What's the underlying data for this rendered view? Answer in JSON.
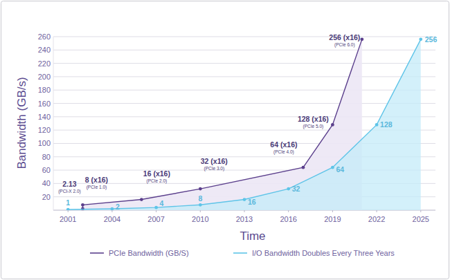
{
  "chart_data": {
    "type": "line",
    "x_label": "Time",
    "y_label": "Bandwidth (GB/s)",
    "xlim": [
      2000,
      2026
    ],
    "xticks": [
      2001,
      2004,
      2007,
      2010,
      2013,
      2016,
      2019,
      2022,
      2025
    ],
    "ylim": [
      0,
      260
    ],
    "yticks": [
      20,
      40,
      60,
      80,
      100,
      120,
      140,
      160,
      180,
      200,
      220,
      240,
      260
    ],
    "grid": true,
    "legend": "bottom",
    "data_labels": true,
    "series": [
      {
        "name": "PCIe Bandwidth (GB/S)",
        "color": "#5b3f8c",
        "marker": "circle",
        "line_style": "solid",
        "x": [
          2002,
          2002,
          2006,
          2010,
          2017,
          2019,
          2021
        ],
        "values": [
          2.13,
          8,
          16,
          32,
          64,
          128,
          256
        ],
        "value_labels": [
          "2.13",
          "8 (x16)",
          "16 (x16)",
          "32 (x16)",
          "64 (x16)",
          "128 (x16)",
          "256 (x16)"
        ],
        "point_notes": [
          "(PCI-X 2.0)",
          "(PCIe 1.0)",
          "(PCIe 2.0)",
          "(PCIe 3.0)",
          "(PCIe 4.0)",
          "(PCIe 5.0)",
          "(PCIe 6.0)"
        ]
      },
      {
        "name": "I/O Bandwidth Doubles Every Three Years",
        "color": "#5ec4e8",
        "marker": "circle",
        "line_style": "solid",
        "x": [
          2001,
          2004,
          2007,
          2010,
          2013,
          2016,
          2019,
          2022,
          2025
        ],
        "values": [
          1,
          2,
          4,
          8,
          16,
          32,
          64,
          128,
          256
        ]
      }
    ]
  }
}
